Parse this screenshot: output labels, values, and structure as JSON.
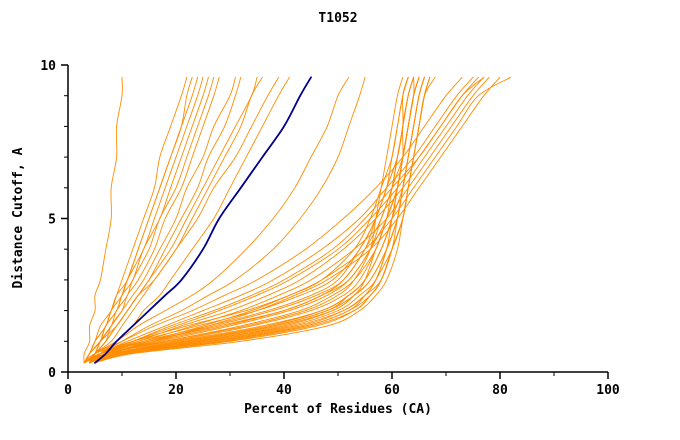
{
  "chart_data": {
    "type": "line",
    "title": "T1052",
    "xlabel": "Percent of Residues (CA)",
    "ylabel": "Distance Cutoff, A",
    "xlim": [
      0,
      100
    ],
    "ylim": [
      0,
      10
    ],
    "grid": false,
    "legend": "none",
    "x_tick_labels": [
      "0",
      "20",
      "40",
      "60",
      "80",
      "100"
    ],
    "y_tick_labels": [
      "0",
      "5",
      "10"
    ],
    "colors": {
      "model_curves": "#ff8c00",
      "highlight_curve": "#00008b",
      "axis": "#000000",
      "background": "#ffffff"
    },
    "curves": {
      "y_samples": [
        0.3,
        0.6,
        1.0,
        1.5,
        2.0,
        2.5,
        3.0,
        4.0,
        5.0,
        6.0,
        7.0,
        8.0,
        9.0,
        9.6
      ],
      "orange_x_at_y": [
        [
          4,
          7,
          18,
          33,
          44,
          50,
          53,
          56,
          57,
          58,
          59,
          60,
          61,
          62
        ],
        [
          4,
          9,
          24,
          40,
          49,
          53,
          55,
          57,
          59,
          60,
          61,
          62,
          62,
          63
        ],
        [
          3,
          6,
          15,
          28,
          40,
          47,
          51,
          55,
          57,
          59,
          60,
          61,
          62,
          63
        ],
        [
          5,
          10,
          28,
          44,
          52,
          55,
          57,
          59,
          60,
          61,
          62,
          62,
          63,
          64
        ],
        [
          4,
          8,
          22,
          38,
          48,
          52,
          55,
          58,
          60,
          61,
          62,
          63,
          64,
          65
        ],
        [
          4,
          7,
          17,
          30,
          41,
          48,
          52,
          56,
          58,
          60,
          61,
          62,
          63,
          64
        ],
        [
          3,
          6,
          14,
          26,
          37,
          45,
          50,
          54,
          57,
          59,
          61,
          62,
          63,
          64
        ],
        [
          5,
          11,
          30,
          46,
          53,
          56,
          58,
          60,
          61,
          62,
          63,
          64,
          65,
          66
        ],
        [
          4,
          9,
          25,
          42,
          51,
          55,
          57,
          60,
          62,
          63,
          64,
          65,
          66,
          67
        ],
        [
          4,
          8,
          20,
          36,
          47,
          52,
          55,
          58,
          60,
          62,
          63,
          64,
          65,
          66
        ],
        [
          3,
          7,
          16,
          29,
          40,
          47,
          52,
          56,
          59,
          61,
          62,
          63,
          64,
          65
        ],
        [
          5,
          12,
          32,
          48,
          54,
          57,
          59,
          61,
          62,
          63,
          64,
          65,
          66,
          67
        ],
        [
          4,
          8,
          21,
          37,
          47,
          52,
          55,
          58,
          60,
          61,
          62,
          63,
          64,
          64
        ],
        [
          4,
          10,
          26,
          43,
          51,
          55,
          58,
          60,
          62,
          63,
          64,
          65,
          66,
          68
        ],
        [
          3,
          6,
          13,
          24,
          35,
          43,
          49,
          54,
          57,
          59,
          61,
          62,
          63,
          64
        ],
        [
          4,
          7,
          19,
          34,
          45,
          51,
          54,
          57,
          59,
          61,
          62,
          63,
          64,
          65
        ],
        [
          5,
          10,
          27,
          44,
          52,
          56,
          58,
          60,
          62,
          63,
          64,
          65,
          66,
          67
        ],
        [
          4,
          8,
          23,
          39,
          49,
          53,
          56,
          59,
          61,
          62,
          63,
          64,
          65,
          66
        ],
        [
          3,
          5,
          12,
          22,
          33,
          41,
          47,
          53,
          56,
          58,
          60,
          61,
          62,
          63
        ],
        [
          4,
          9,
          24,
          41,
          50,
          54,
          57,
          59,
          61,
          62,
          63,
          64,
          65,
          66
        ],
        [
          4,
          7,
          18,
          32,
          43,
          49,
          53,
          57,
          59,
          61,
          62,
          63,
          64,
          65
        ],
        [
          5,
          11,
          29,
          45,
          53,
          56,
          58,
          60,
          62,
          63,
          64,
          65,
          66,
          67
        ],
        [
          4,
          8,
          22,
          38,
          48,
          53,
          56,
          59,
          61,
          62,
          63,
          64,
          65,
          66
        ],
        [
          4,
          6,
          15,
          27,
          38,
          46,
          51,
          55,
          58,
          60,
          62,
          63,
          64,
          65
        ],
        [
          4,
          6,
          12,
          20,
          28,
          35,
          41,
          50,
          56,
          61,
          65,
          69,
          73,
          76
        ],
        [
          4,
          7,
          14,
          23,
          32,
          39,
          45,
          53,
          59,
          63,
          67,
          71,
          75,
          78
        ],
        [
          5,
          8,
          16,
          26,
          35,
          42,
          48,
          56,
          61,
          65,
          69,
          73,
          77,
          80
        ],
        [
          4,
          6,
          11,
          18,
          25,
          32,
          38,
          47,
          54,
          59,
          64,
          68,
          72,
          75
        ],
        [
          4,
          7,
          13,
          21,
          30,
          37,
          43,
          51,
          57,
          62,
          66,
          70,
          74,
          77
        ],
        [
          5,
          8,
          15,
          25,
          34,
          41,
          47,
          55,
          60,
          64,
          68,
          72,
          76,
          82
        ],
        [
          4,
          5,
          10,
          16,
          23,
          29,
          35,
          44,
          51,
          57,
          62,
          66,
          70,
          73
        ],
        [
          4,
          6,
          12,
          19,
          27,
          34,
          40,
          49,
          55,
          60,
          65,
          69,
          73,
          77
        ],
        [
          3,
          3,
          4,
          4,
          5,
          5,
          6,
          7,
          8,
          8,
          9,
          9,
          10,
          10
        ],
        [
          3,
          4,
          5,
          7,
          8,
          9,
          11,
          13,
          15,
          17,
          19,
          21,
          23,
          24
        ],
        [
          4,
          5,
          6,
          8,
          10,
          11,
          13,
          16,
          18,
          21,
          23,
          25,
          27,
          28
        ],
        [
          3,
          4,
          6,
          7,
          9,
          10,
          12,
          14,
          17,
          19,
          21,
          23,
          25,
          26
        ],
        [
          4,
          5,
          7,
          9,
          11,
          13,
          15,
          18,
          21,
          24,
          26,
          29,
          31,
          32
        ],
        [
          3,
          4,
          5,
          6,
          8,
          9,
          10,
          12,
          14,
          16,
          17,
          19,
          21,
          22
        ],
        [
          4,
          5,
          8,
          10,
          12,
          14,
          16,
          20,
          23,
          26,
          29,
          32,
          34,
          36
        ],
        [
          3,
          4,
          6,
          8,
          9,
          11,
          12,
          15,
          17,
          20,
          22,
          24,
          26,
          27
        ],
        [
          4,
          6,
          9,
          12,
          14,
          17,
          19,
          23,
          27,
          30,
          33,
          36,
          39,
          41
        ],
        [
          3,
          4,
          5,
          7,
          8,
          10,
          11,
          13,
          15,
          17,
          19,
          21,
          22,
          23
        ],
        [
          4,
          5,
          7,
          8,
          10,
          12,
          14,
          17,
          20,
          22,
          25,
          27,
          30,
          31
        ],
        [
          3,
          4,
          6,
          9,
          11,
          13,
          15,
          19,
          22,
          25,
          28,
          31,
          34,
          35
        ],
        [
          4,
          5,
          6,
          7,
          9,
          10,
          11,
          14,
          16,
          18,
          20,
          22,
          24,
          25
        ],
        [
          3,
          5,
          7,
          9,
          11,
          13,
          16,
          20,
          24,
          27,
          31,
          34,
          37,
          39
        ],
        [
          4,
          6,
          10,
          15,
          21,
          26,
          31,
          38,
          43,
          47,
          50,
          52,
          54,
          55
        ],
        [
          4,
          5,
          9,
          13,
          18,
          23,
          27,
          33,
          38,
          42,
          45,
          48,
          50,
          52
        ]
      ],
      "blue_x_at_y": [
        5,
        7,
        9,
        12,
        15,
        18,
        21,
        25,
        28,
        32,
        36,
        40,
        43,
        45
      ]
    }
  }
}
